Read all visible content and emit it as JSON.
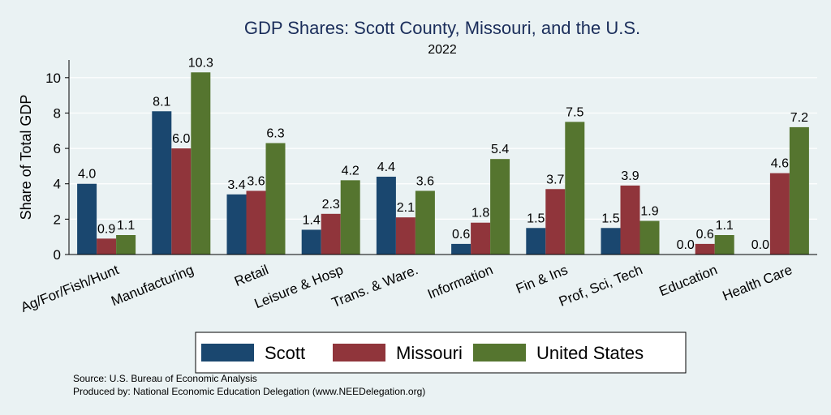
{
  "chart_data": {
    "type": "bar",
    "title": "GDP Shares: Scott County, Missouri, and the U.S.",
    "subtitle": "2022",
    "ylabel": "Share of Total GDP",
    "xlabel": "",
    "ylim": [
      0,
      11
    ],
    "yticks": [
      0,
      2,
      4,
      6,
      8,
      10
    ],
    "grid": true,
    "legend_position": "bottom",
    "categories": [
      "Ag/For/Fish/Hunt",
      "Manufacturing",
      "Retail",
      "Leisure & Hosp",
      "Trans. & Ware.",
      "Information",
      "Fin & Ins",
      "Prof, Sci, Tech",
      "Education",
      "Health Care"
    ],
    "series": [
      {
        "name": "Scott",
        "color": "#1a476f",
        "values": [
          4.0,
          8.1,
          3.4,
          1.4,
          4.4,
          0.6,
          1.5,
          1.5,
          0.0,
          0.0
        ]
      },
      {
        "name": "Missouri",
        "color": "#90353b",
        "values": [
          0.9,
          6.0,
          3.6,
          2.3,
          2.1,
          1.8,
          3.7,
          3.9,
          0.6,
          4.6
        ]
      },
      {
        "name": "United States",
        "color": "#55752f",
        "values": [
          1.1,
          10.3,
          6.3,
          4.2,
          3.6,
          5.4,
          7.5,
          1.9,
          1.1,
          7.2
        ]
      }
    ]
  },
  "notes": {
    "source": "Source: U.S. Bureau of Economic Analysis",
    "produced": "Produced by: National Economic Education Delegation (www.NEEDelegation.org)"
  }
}
